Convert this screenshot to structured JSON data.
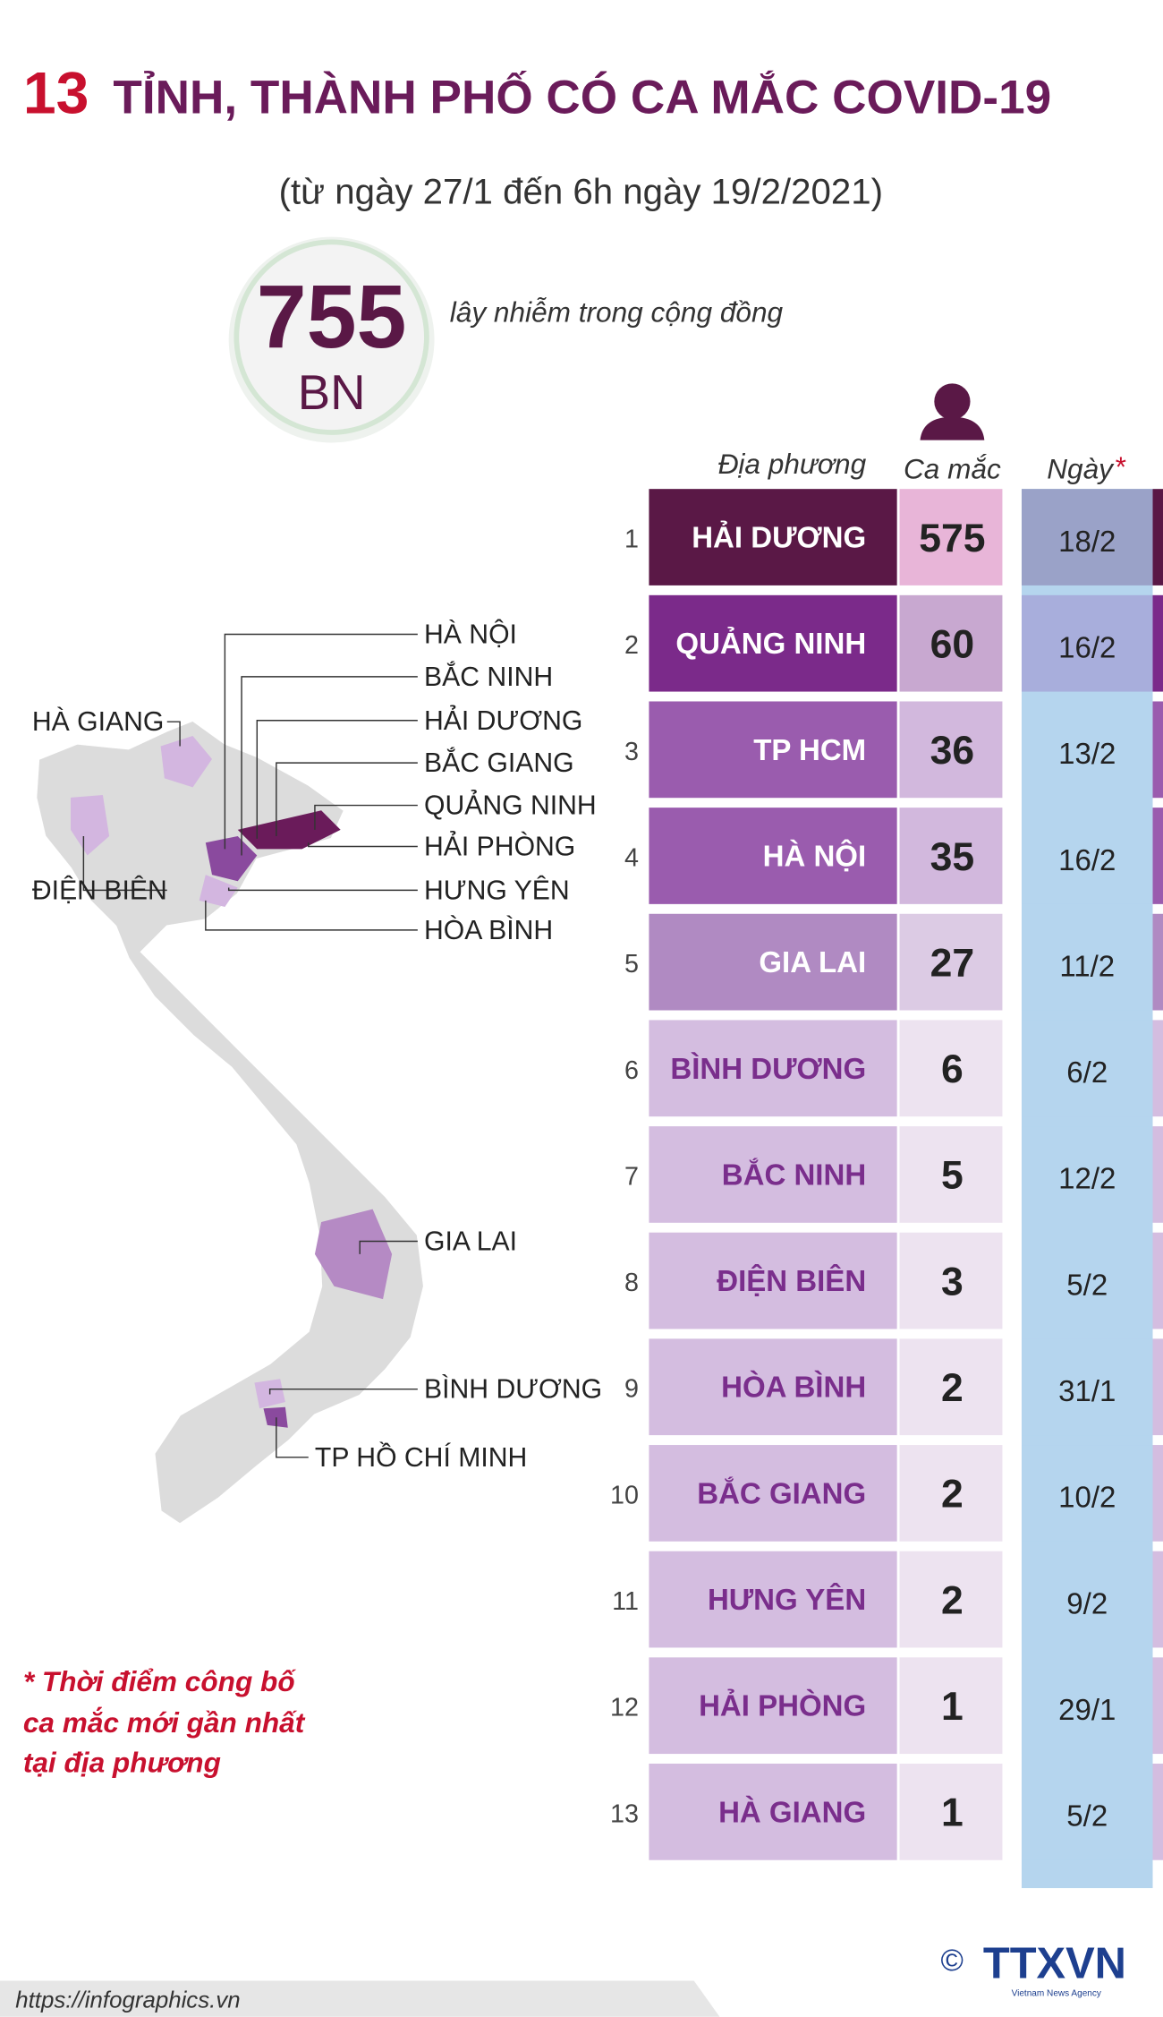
{
  "header": {
    "number": "13",
    "title": "TỈNH, THÀNH PHỐ CÓ CA MẮC COVID-19",
    "subtitle": "(từ ngày 27/1 đến 6h ngày 19/2/2021)"
  },
  "total": {
    "value": "755",
    "unit": "BN",
    "label": "lây nhiễm trong cộng đồng"
  },
  "table": {
    "columns": [
      "Địa phương",
      "Ca mắc",
      "Ngày"
    ],
    "date_mark": "*",
    "rows": [
      [
        "1",
        "HẢI DƯƠNG",
        "575",
        "18/2"
      ],
      [
        "2",
        "QUẢNG NINH",
        "60",
        "16/2"
      ],
      [
        "3",
        "TP HCM",
        "36",
        "13/2"
      ],
      [
        "4",
        "HÀ NỘI",
        "35",
        "16/2"
      ],
      [
        "5",
        "GIA LAI",
        "27",
        "11/2"
      ],
      [
        "6",
        "BÌNH DƯƠNG",
        "6",
        "6/2"
      ],
      [
        "7",
        "BẮC NINH",
        "5",
        "12/2"
      ],
      [
        "8",
        "ĐIỆN BIÊN",
        "3",
        "5/2"
      ],
      [
        "9",
        "HÒA BÌNH",
        "2",
        "31/1"
      ],
      [
        "10",
        "BẮC GIANG",
        "2",
        "10/2"
      ],
      [
        "11",
        "HƯNG YÊN",
        "2",
        "9/2"
      ],
      [
        "12",
        "HẢI PHÒNG",
        "1",
        "29/1"
      ],
      [
        "13",
        "HÀ GIANG",
        "1",
        "5/2"
      ]
    ]
  },
  "map_labels": [
    "HÀ NỘI",
    "BẮC NINH",
    "HẢI DƯƠNG",
    "BẮC GIANG",
    "QUẢNG NINH",
    "HẢI PHÒNG",
    "HƯNG YÊN",
    "HÒA BÌNH",
    "HÀ GIANG",
    "ĐIỆN BIÊN",
    "GIA LAI",
    "BÌNH DƯƠNG",
    "TP HỒ CHÍ MINH"
  ],
  "footnote": [
    "* Thời điểm công bố",
    "ca mắc mới gần nhất",
    "tại địa phương"
  ],
  "footer": {
    "url": "https://infographics.vn",
    "copyright": "©",
    "logo": "TTXVN",
    "agency": "Vietnam News Agency"
  }
}
